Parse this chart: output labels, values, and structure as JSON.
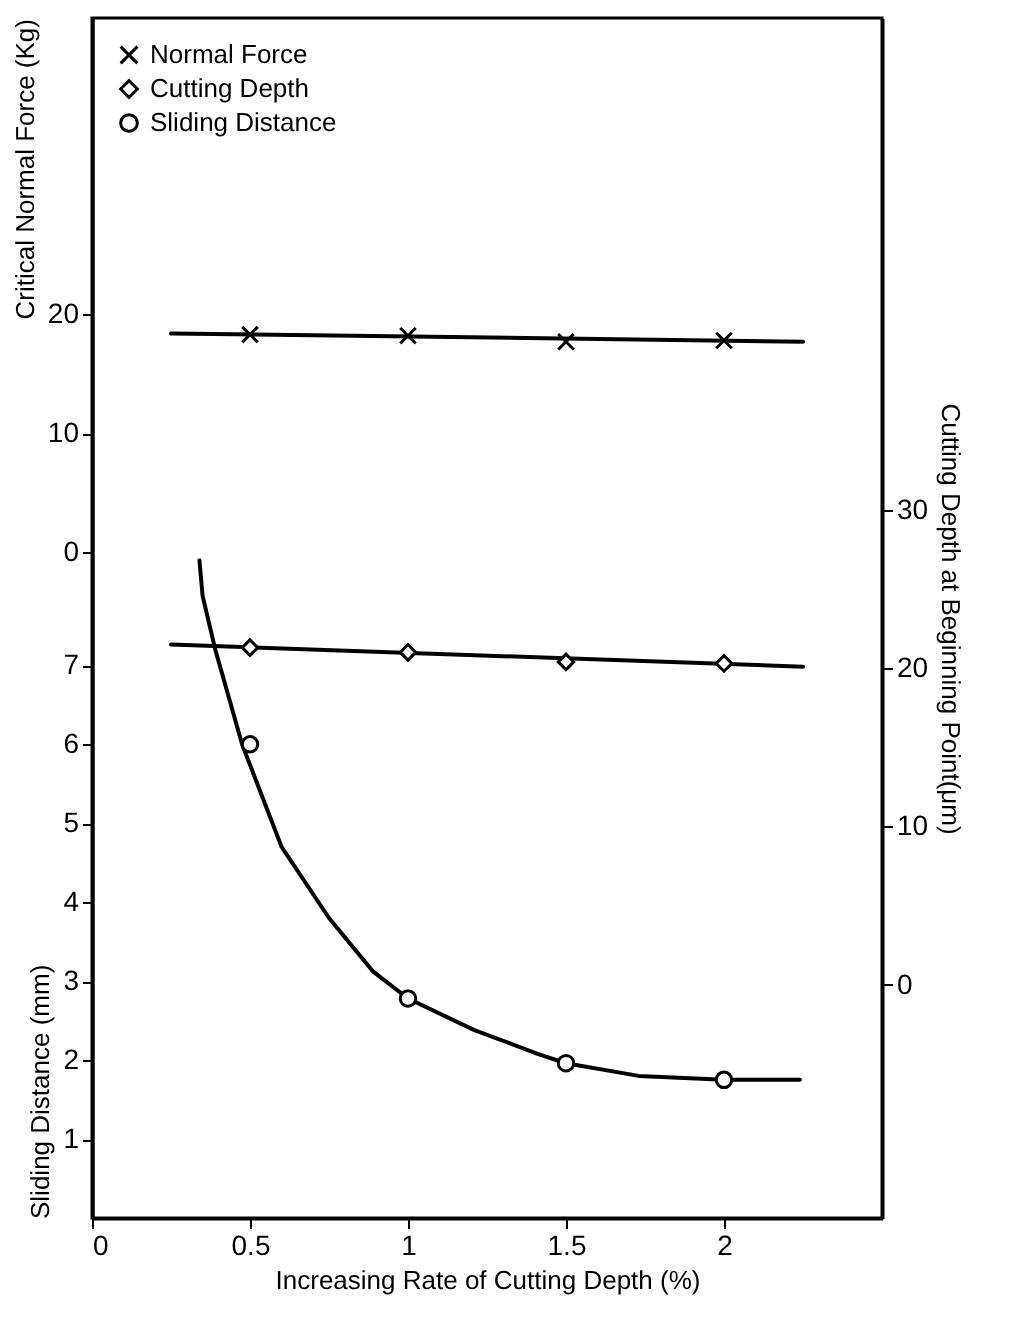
{
  "chart_data": {
    "type": "scatter",
    "xlabel": "Increasing Rate of Cutting Depth (%)",
    "ylabel": "Sliding Distance (mm)",
    "y2label": "Cutting Depth at Beginning Point(μm)",
    "y3label": "Critical Normal Force (Kg)",
    "xlim": [
      0,
      2.5
    ],
    "xticks": [
      0,
      0.5,
      1,
      1.5,
      2
    ],
    "ylim": [
      0,
      15.2
    ],
    "yticks": [
      1,
      2,
      3,
      4,
      5,
      6,
      7
    ],
    "y2lim": [
      -14.75,
      61.1
    ],
    "y2ticks": [
      0,
      10,
      20,
      30
    ],
    "y3lim": [
      -56.2,
      45
    ],
    "y3ticks": [
      0,
      10,
      20
    ],
    "legend": "top left",
    "series": [
      {
        "name": "Normal Force",
        "color": "#000000",
        "marker": "cross",
        "axis": "y3",
        "x": [
          0.5,
          1,
          1.5,
          2
        ],
        "values": [
          18.3,
          18.2,
          17.7,
          17.8
        ]
      },
      {
        "name": "Cutting Depth",
        "color": "#000000",
        "marker": "diamond",
        "axis": "y2",
        "x": [
          0.5,
          1,
          1.5,
          2
        ],
        "values": [
          21.3,
          21.0,
          20.4,
          20.3
        ]
      },
      {
        "name": "Sliding Distance",
        "color": "#000000",
        "marker": "circle",
        "axis": "y",
        "x": [
          0.5,
          1,
          1.5,
          2
        ],
        "values": [
          6.0,
          2.78,
          1.96,
          1.75
        ]
      },
      {
        "type": "line",
        "color": "#000000",
        "axis": "y3",
        "x": [
          0.25,
          2.25
        ],
        "values": [
          18.4,
          17.7
        ]
      },
      {
        "type": "line",
        "color": "#000000",
        "axis": "y2",
        "x": [
          0.25,
          2.25
        ],
        "values": [
          21.5,
          20.1
        ]
      },
      {
        "type": "line",
        "color": "#000000",
        "axis": "y",
        "x": [
          0.34,
          0.35,
          0.39,
          0.475,
          0.6,
          0.75,
          0.89,
          1.0,
          1.21,
          1.41,
          1.5,
          1.73,
          2.0,
          2.24
        ],
        "values": [
          8.33,
          7.88,
          7.2,
          6.0,
          4.7,
          3.8,
          3.12,
          2.78,
          2.38,
          2.08,
          1.96,
          1.8,
          1.75,
          1.75
        ]
      }
    ]
  }
}
